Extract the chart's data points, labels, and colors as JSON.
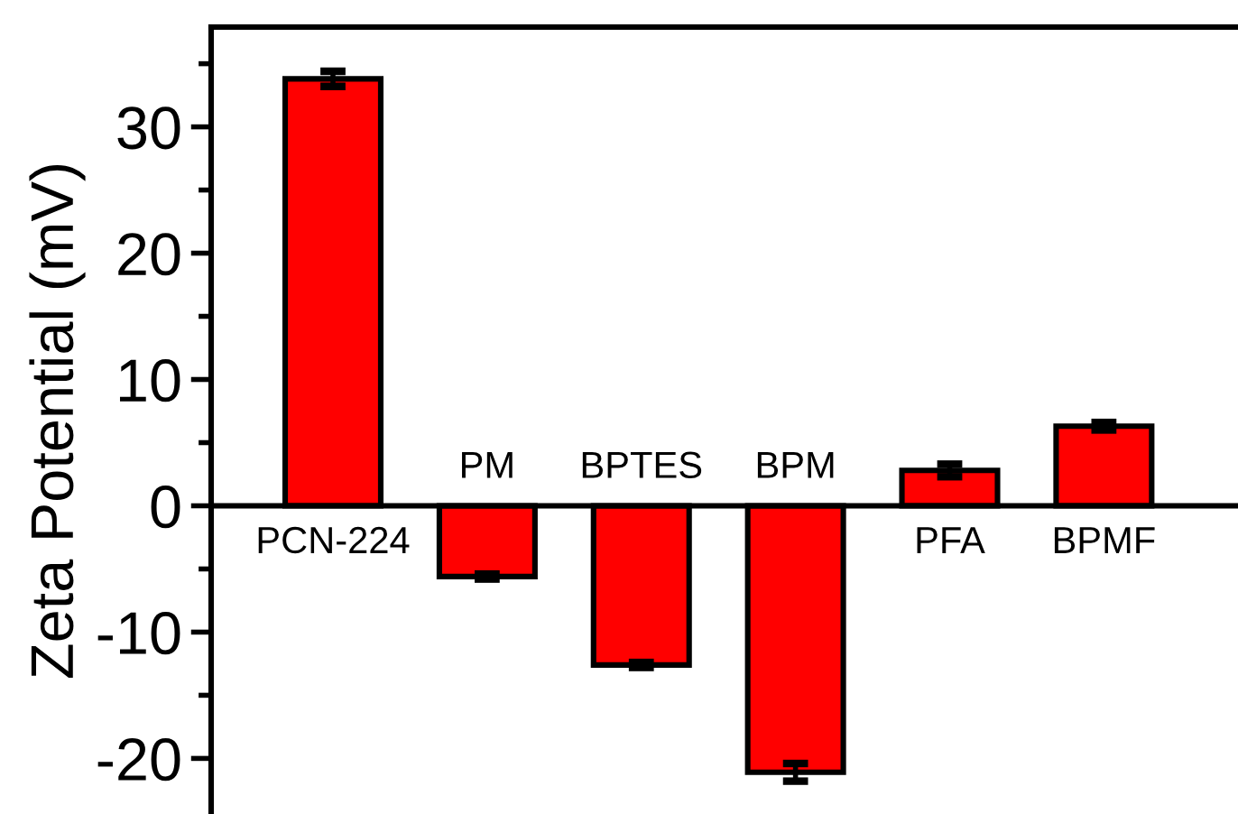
{
  "chart_data": {
    "type": "bar",
    "ylabel": "Zeta Potential (mV)",
    "categories": [
      "PCN-224",
      "PM",
      "BPTES",
      "BPM",
      "PFA",
      "BPMF"
    ],
    "values": [
      33.8,
      -5.6,
      -12.6,
      -21.1,
      2.8,
      6.3
    ],
    "errors": [
      0.6,
      0.2,
      0.2,
      0.7,
      0.5,
      0.3
    ],
    "color": "#ff0000",
    "ylim": [
      -24.4,
      37.9
    ],
    "yticks": [
      -20,
      {
        "value": -15,
        "label": null
      },
      -10,
      {
        "value": -5,
        "label": null
      },
      0,
      {
        "value": 5,
        "label": null
      },
      10,
      {
        "value": 15,
        "label": null
      },
      20,
      {
        "value": 25,
        "label": null
      },
      30,
      {
        "value": 35,
        "label": null
      }
    ],
    "grid": false,
    "legend": false
  }
}
